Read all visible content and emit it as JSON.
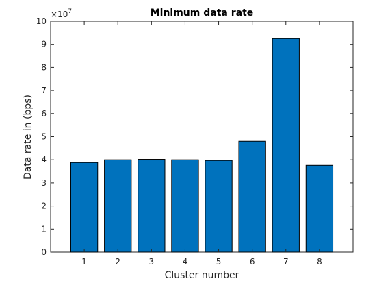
{
  "chart_data": {
    "type": "bar",
    "title": "Minimum data rate",
    "xlabel": "Cluster number",
    "ylabel": "Data rate in (bps)",
    "y_multiplier_label": "×10",
    "y_multiplier_exponent": "7",
    "categories": [
      "1",
      "2",
      "3",
      "4",
      "5",
      "6",
      "7",
      "8"
    ],
    "values": [
      38800000,
      40000000,
      40200000,
      40000000,
      39700000,
      48000000,
      92500000,
      37600000
    ],
    "ylim": [
      0,
      100000000
    ],
    "yticks": [
      0,
      10000000,
      20000000,
      30000000,
      40000000,
      50000000,
      60000000,
      70000000,
      80000000,
      90000000,
      100000000
    ],
    "ytick_labels": [
      "0",
      "1",
      "2",
      "3",
      "4",
      "5",
      "6",
      "7",
      "8",
      "9",
      "10"
    ],
    "xlim": [
      0,
      9
    ],
    "grid": false,
    "legend": "none",
    "bar_color": "#0072BD"
  }
}
